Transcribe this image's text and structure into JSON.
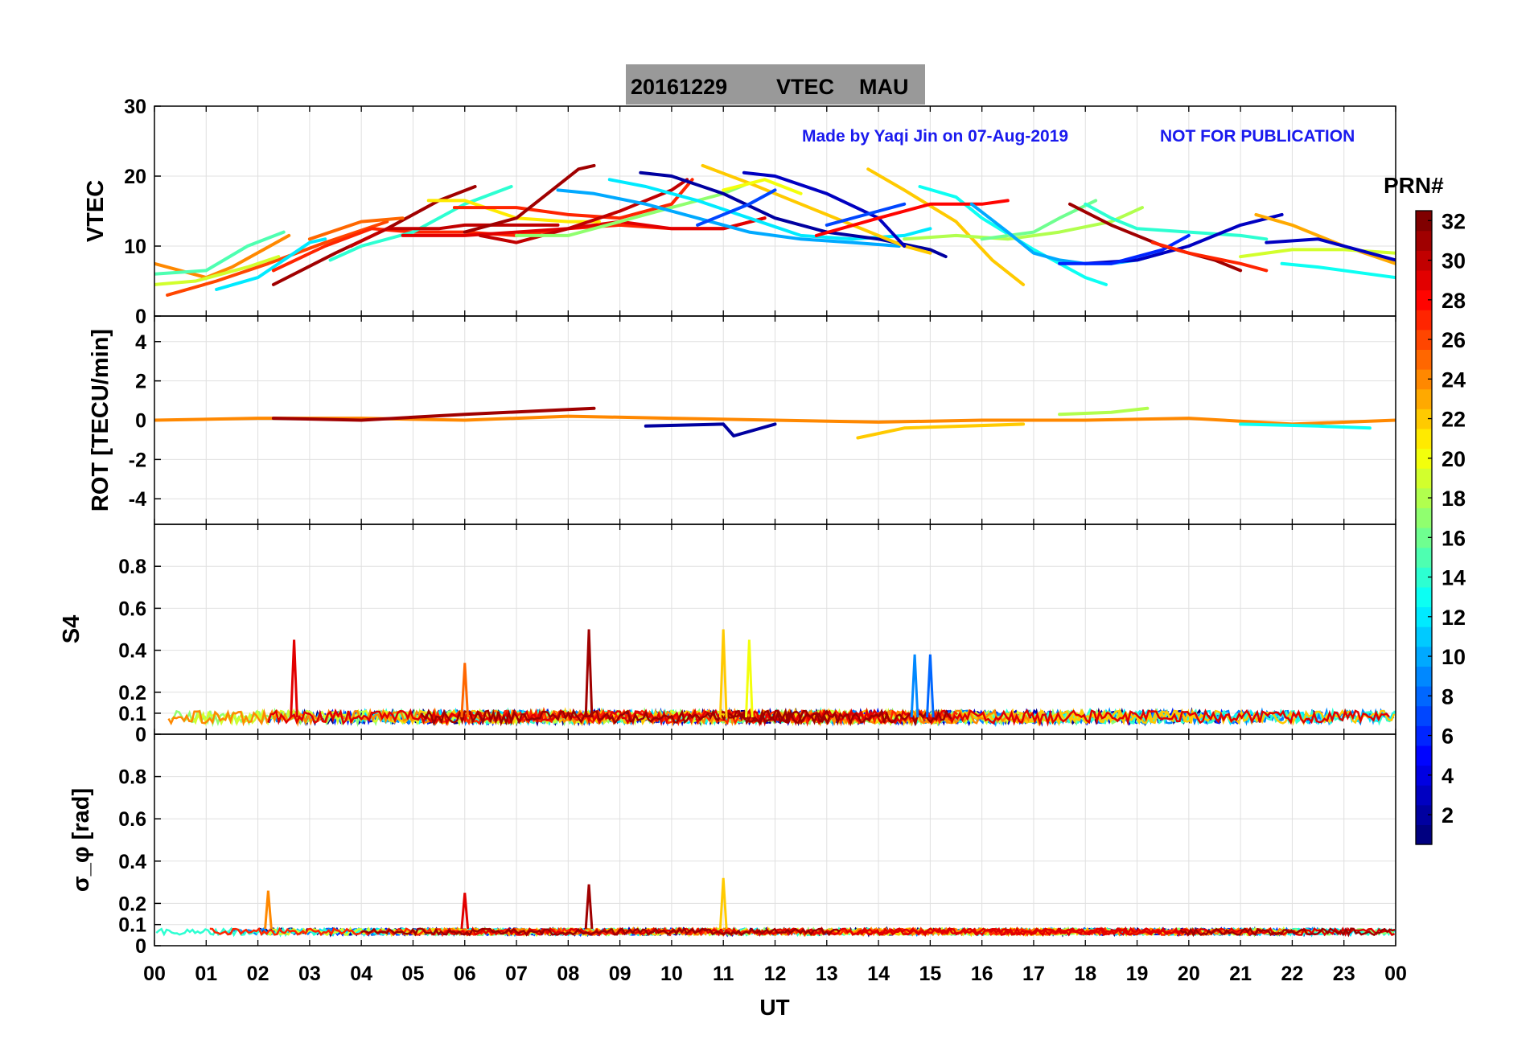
{
  "title": {
    "date": "20161229",
    "quantity": "VTEC",
    "station": "MAU"
  },
  "credit": "Made by Yaqi Jin on 07-Aug-2019",
  "notice": "NOT FOR PUBLICATION",
  "xaxis": {
    "label": "UT",
    "ticks": [
      "00",
      "01",
      "02",
      "03",
      "04",
      "05",
      "06",
      "07",
      "08",
      "09",
      "10",
      "11",
      "12",
      "13",
      "14",
      "15",
      "16",
      "17",
      "18",
      "19",
      "20",
      "21",
      "22",
      "23",
      "00"
    ],
    "range_hours": [
      0,
      24
    ]
  },
  "colorbar": {
    "label": "PRN#",
    "range": [
      1,
      32
    ],
    "ticks": [
      "2",
      "4",
      "6",
      "8",
      "10",
      "12",
      "14",
      "16",
      "18",
      "20",
      "22",
      "24",
      "26",
      "28",
      "30",
      "32"
    ],
    "colormap": "jet"
  },
  "chart_data": [
    {
      "type": "line",
      "panel": "VTEC",
      "ylabel": "VTEC",
      "ylim": [
        0,
        30
      ],
      "yticks": [
        "0",
        "10",
        "20",
        "30"
      ],
      "grid": true,
      "series": [
        {
          "prn": 31,
          "x": [
            2.3,
            3.5,
            4.5,
            5.5,
            6.2
          ],
          "y": [
            4.5,
            9,
            12.5,
            16.5,
            18.5
          ]
        },
        {
          "prn": 24,
          "x": [
            0.0,
            0.5,
            1.0,
            1.5,
            2.6
          ],
          "y": [
            7.5,
            6.5,
            5.5,
            7,
            11.5
          ]
        },
        {
          "prn": 26,
          "x": [
            0.25,
            1.2,
            2.2,
            3.3,
            4.5
          ],
          "y": [
            3,
            5,
            7.5,
            10.5,
            13.5
          ]
        },
        {
          "prn": 15,
          "x": [
            0.0,
            1.0,
            1.8,
            2.5
          ],
          "y": [
            6,
            6.5,
            10,
            12
          ]
        },
        {
          "prn": 12,
          "x": [
            1.2,
            2.0,
            3.0,
            3.3
          ],
          "y": [
            3.8,
            5.5,
            10.5,
            11
          ]
        },
        {
          "prn": 19,
          "x": [
            0.0,
            0.8,
            1.8,
            2.4
          ],
          "y": [
            4.5,
            5,
            7,
            8.5
          ]
        },
        {
          "prn": 27,
          "x": [
            2.3,
            3.3,
            4.2,
            5.0,
            6.0,
            7.0,
            8.0,
            9.0,
            10.0,
            11.0,
            11.8
          ],
          "y": [
            6.5,
            10,
            12.5,
            12,
            12,
            11.5,
            12.5,
            13,
            12.5,
            12.5,
            14
          ]
        },
        {
          "prn": 25,
          "x": [
            3.0,
            4.0,
            4.8
          ],
          "y": [
            11,
            13.5,
            14
          ]
        },
        {
          "prn": 14,
          "x": [
            3.4,
            4.0,
            5.0,
            6.0,
            6.9
          ],
          "y": [
            8,
            10,
            12,
            16,
            18.5
          ]
        },
        {
          "prn": 29,
          "x": [
            4.8,
            6.0,
            7.0,
            8.0,
            9.0,
            10.0,
            11.0,
            11.8
          ],
          "y": [
            11.5,
            11.5,
            12,
            12.5,
            13.5,
            12.5,
            12.5,
            14
          ]
        },
        {
          "prn": 30,
          "x": [
            3.8,
            4.5,
            5.5,
            6.0,
            7.0,
            7.8
          ],
          "y": [
            10,
            12.5,
            12.5,
            13,
            13,
            13
          ]
        },
        {
          "prn": 21,
          "x": [
            5.3,
            6.0,
            7.0,
            8.0,
            8.6
          ],
          "y": [
            16.5,
            16.5,
            14,
            13.5,
            13.5
          ]
        },
        {
          "prn": 27,
          "x": [
            5.8,
            7.0,
            8.0,
            9.0,
            10.0,
            10.4
          ],
          "y": [
            15.5,
            15.5,
            14.5,
            14,
            16,
            19.5
          ]
        },
        {
          "prn": 30,
          "x": [
            6.3,
            7.0,
            7.5,
            8.0,
            9.0,
            10.0,
            10.3
          ],
          "y": [
            11.5,
            10.5,
            11.5,
            12.5,
            15,
            18,
            19.5
          ]
        },
        {
          "prn": 31,
          "x": [
            6.0,
            7.0,
            7.6,
            8.2,
            8.5
          ],
          "y": [
            12,
            14,
            17.5,
            21,
            21.5
          ]
        },
        {
          "prn": 17,
          "x": [
            7.0,
            8.0,
            9.0,
            10.0,
            11.0,
            11.5
          ],
          "y": [
            11.5,
            11.5,
            13.5,
            15.5,
            17.5,
            19
          ]
        },
        {
          "prn": 10,
          "x": [
            7.8,
            8.5,
            9.5,
            10.5,
            11.5,
            12.5,
            13.5,
            14.4
          ],
          "y": [
            18,
            17.5,
            16,
            14,
            12,
            11,
            10.5,
            10
          ]
        },
        {
          "prn": 12,
          "x": [
            8.8,
            9.5,
            10.5,
            11.5,
            12.5,
            13.5,
            14.5,
            15.0
          ],
          "y": [
            19.5,
            18.5,
            16.5,
            14,
            11.5,
            11,
            11.5,
            12.5
          ]
        },
        {
          "prn": 2,
          "x": [
            9.4,
            10.0,
            11.0,
            12.0,
            13.0,
            14.0,
            15.0,
            15.3
          ],
          "y": [
            20.5,
            20,
            17.5,
            14,
            12,
            11,
            9.5,
            8.5
          ]
        },
        {
          "prn": 22,
          "x": [
            10.6,
            11.5,
            12.5,
            13.5,
            14.5,
            15.0
          ],
          "y": [
            21.5,
            19,
            16,
            13,
            10,
            9
          ]
        },
        {
          "prn": 3,
          "x": [
            11.4,
            12.0,
            13.0,
            14.0,
            14.5
          ],
          "y": [
            20.5,
            20,
            17.5,
            14,
            10
          ]
        },
        {
          "prn": 7,
          "x": [
            10.5,
            11.5,
            12.0
          ],
          "y": [
            13,
            16,
            18
          ]
        },
        {
          "prn": 20,
          "x": [
            11.0,
            11.8,
            12.5
          ],
          "y": [
            18,
            19.5,
            17.5
          ]
        },
        {
          "prn": 7,
          "x": [
            13.0,
            14.0,
            14.5
          ],
          "y": [
            13,
            15,
            16
          ]
        },
        {
          "prn": 22,
          "x": [
            13.8,
            14.5,
            15.5,
            16.2,
            16.8
          ],
          "y": [
            21,
            18,
            13.5,
            8,
            4.5
          ]
        },
        {
          "prn": 13,
          "x": [
            14.8,
            15.5,
            16.0,
            17.0,
            18.0,
            18.4
          ],
          "y": [
            18.5,
            17,
            14,
            9.5,
            5.5,
            4.5
          ]
        },
        {
          "prn": 28,
          "x": [
            12.8,
            14.0,
            15.0,
            16.0,
            16.5
          ],
          "y": [
            11.5,
            14,
            16,
            16,
            16.5
          ]
        },
        {
          "prn": 18,
          "x": [
            14.5,
            15.5,
            16.5,
            17.5,
            18.5,
            19.1
          ],
          "y": [
            11,
            11.5,
            11,
            12,
            13.5,
            15.5
          ]
        },
        {
          "prn": 16,
          "x": [
            16.0,
            17.0,
            17.5,
            18.2
          ],
          "y": [
            11,
            12,
            14,
            16.5
          ]
        },
        {
          "prn": 10,
          "x": [
            15.8,
            16.5,
            17.0,
            17.5,
            18.0,
            18.5,
            19.0,
            19.5
          ],
          "y": [
            16,
            12,
            9,
            8,
            7.5,
            7.5,
            8,
            9
          ]
        },
        {
          "prn": 14,
          "x": [
            18.0,
            18.5,
            19.0,
            20.0,
            21.0,
            21.5
          ],
          "y": [
            16,
            14,
            12.5,
            12,
            11.5,
            11
          ]
        },
        {
          "prn": 31,
          "x": [
            17.7,
            18.5,
            19.5,
            20.5,
            21.0
          ],
          "y": [
            16,
            13,
            10,
            8,
            6.5
          ]
        },
        {
          "prn": 3,
          "x": [
            18.0,
            19.0,
            20.0,
            21.0,
            21.8
          ],
          "y": [
            7.5,
            8,
            10,
            13,
            14.5
          ]
        },
        {
          "prn": 6,
          "x": [
            17.5,
            18.5,
            19.5,
            20.0
          ],
          "y": [
            7.5,
            7.5,
            9.5,
            11.5
          ]
        },
        {
          "prn": 27,
          "x": [
            19.3,
            20.0,
            21.0,
            21.5
          ],
          "y": [
            10.5,
            9,
            7.5,
            6.5
          ]
        },
        {
          "prn": 23,
          "x": [
            21.3,
            22.0,
            23.0,
            24.0
          ],
          "y": [
            14.5,
            13,
            10,
            7.5
          ]
        },
        {
          "prn": 19,
          "x": [
            21.0,
            22.0,
            23.0,
            24.0
          ],
          "y": [
            8.5,
            9.5,
            9.5,
            9
          ]
        },
        {
          "prn": 3,
          "x": [
            21.5,
            22.5,
            23.5,
            24.0
          ],
          "y": [
            10.5,
            11,
            9,
            8
          ]
        },
        {
          "prn": 13,
          "x": [
            21.8,
            22.5,
            23.5,
            24.0
          ],
          "y": [
            7.5,
            7,
            6,
            5.5
          ]
        }
      ]
    },
    {
      "type": "line",
      "panel": "ROT",
      "ylabel": "ROT [TECU/min]",
      "ylim": [
        -5.3,
        5.3
      ],
      "yticks": [
        "-4",
        "-2",
        "0",
        "2",
        "4"
      ],
      "grid": true,
      "series": [
        {
          "prn": 24,
          "x": [
            0,
            2,
            4,
            6,
            8,
            10,
            12,
            14,
            16,
            18,
            20,
            22,
            24
          ],
          "y": [
            0,
            0.1,
            0.1,
            0,
            0.2,
            0.1,
            0,
            -0.1,
            0,
            0,
            0.1,
            -0.2,
            0
          ]
        },
        {
          "prn": 31,
          "x": [
            2.3,
            4,
            6,
            8.5
          ],
          "y": [
            0.1,
            0,
            0.3,
            0.6
          ]
        },
        {
          "prn": 2,
          "x": [
            9.5,
            11,
            11.2,
            12
          ],
          "y": [
            -0.3,
            -0.2,
            -0.8,
            -0.2
          ]
        },
        {
          "prn": 22,
          "x": [
            13.6,
            14.5,
            16.8
          ],
          "y": [
            -0.9,
            -0.4,
            -0.2
          ]
        },
        {
          "prn": 13,
          "x": [
            21,
            22.5,
            23.5
          ],
          "y": [
            -0.2,
            -0.3,
            -0.4
          ]
        },
        {
          "prn": 18,
          "x": [
            17.5,
            18.5,
            19.2
          ],
          "y": [
            0.3,
            0.4,
            0.6
          ]
        }
      ]
    },
    {
      "type": "line",
      "panel": "S4",
      "ylabel": "S4",
      "ylim": [
        0,
        1
      ],
      "yticks": [
        "0",
        "0.1",
        "0.2",
        "0.4",
        "0.6",
        "0.8"
      ],
      "grid": true,
      "peaks": [
        {
          "prn": 29,
          "x": 2.7,
          "y": 0.45
        },
        {
          "prn": 31,
          "x": 8.4,
          "y": 0.5
        },
        {
          "prn": 22,
          "x": 11.0,
          "y": 0.5
        },
        {
          "prn": 20,
          "x": 11.5,
          "y": 0.45
        },
        {
          "prn": 9,
          "x": 14.7,
          "y": 0.38
        },
        {
          "prn": 8,
          "x": 15.0,
          "y": 0.38
        },
        {
          "prn": 25,
          "x": 6.0,
          "y": 0.34
        }
      ]
    },
    {
      "type": "line",
      "panel": "sigma_phi",
      "ylabel": "σ_φ [rad]",
      "ylim": [
        0,
        1
      ],
      "yticks": [
        "0",
        "0.1",
        "0.2",
        "0.4",
        "0.6",
        "0.8"
      ],
      "grid": true,
      "peaks": [
        {
          "prn": 22,
          "x": 11.0,
          "y": 0.32
        },
        {
          "prn": 31,
          "x": 8.4,
          "y": 0.29
        },
        {
          "prn": 24,
          "x": 2.2,
          "y": 0.26
        },
        {
          "prn": 29,
          "x": 6.0,
          "y": 0.25
        }
      ]
    }
  ]
}
